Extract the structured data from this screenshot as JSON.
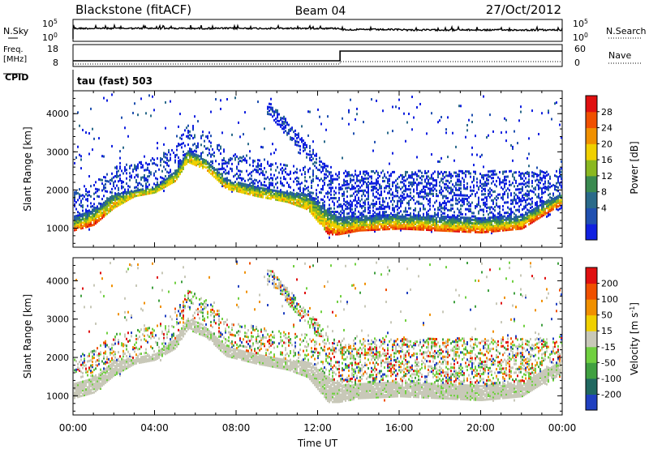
{
  "header": {
    "station": "Blackstone (fitACF)",
    "beam": "Beam 04",
    "date": "27/Oct/2012"
  },
  "sky_panel": {
    "left_label": "N.Sky",
    "right_label": "N.Search",
    "left_ticks": [
      "10^5",
      "10^0"
    ],
    "right_ticks": [
      "10^5",
      "10^0"
    ]
  },
  "freq_panel": {
    "left_label_line1": "Freq.",
    "left_label_line2": "[MHz]",
    "left_ticks": [
      "18",
      "8"
    ],
    "right_label": "Nave",
    "right_ticks": [
      "60",
      "0"
    ]
  },
  "cpid": {
    "label": "CPID",
    "value": "tau (fast) 503"
  },
  "colors": {
    "power": [
      "#1020e0",
      "#2050b0",
      "#2a6a8a",
      "#3a8a50",
      "#8ab820",
      "#f0d000",
      "#f09000",
      "#f05000",
      "#e01010"
    ],
    "velocity": [
      "#2040c0",
      "#206860",
      "#40a040",
      "#70d040",
      "#c8c8b8",
      "#f0d000",
      "#f09000",
      "#f05000",
      "#e01010"
    ]
  },
  "chart_data": [
    {
      "type": "heatmap",
      "name": "power",
      "ylabel": "Slant Range [km]",
      "yticks": [
        "1000",
        "2000",
        "3000",
        "4000"
      ],
      "ylim": [
        500,
        4600
      ],
      "xlim_hours": [
        0,
        24
      ],
      "colorbar_label": "Power [dB]",
      "colorbar_ticks": [
        "28",
        "24",
        "20",
        "16",
        "12",
        "8",
        "4"
      ],
      "colorbar_range": [
        0,
        32
      ],
      "band_lower_edge_km": [
        [
          0,
          900
        ],
        [
          1,
          1050
        ],
        [
          2,
          1500
        ],
        [
          3,
          1800
        ],
        [
          4,
          1900
        ],
        [
          5,
          2200
        ],
        [
          5.6,
          2700
        ],
        [
          6.5,
          2500
        ],
        [
          7.5,
          2000
        ],
        [
          9,
          1800
        ],
        [
          10.5,
          1650
        ],
        [
          11.5,
          1450
        ],
        [
          12.5,
          800
        ],
        [
          13,
          800
        ],
        [
          14,
          900
        ],
        [
          16,
          950
        ],
        [
          18,
          900
        ],
        [
          20,
          850
        ],
        [
          22,
          950
        ],
        [
          23.5,
          1450
        ],
        [
          24,
          1600
        ]
      ],
      "band_upper_edge_km": [
        [
          0,
          1300
        ],
        [
          1,
          1500
        ],
        [
          2,
          1900
        ],
        [
          3,
          2000
        ],
        [
          4,
          2100
        ],
        [
          5,
          2500
        ],
        [
          5.6,
          3050
        ],
        [
          6.5,
          2800
        ],
        [
          7.5,
          2300
        ],
        [
          9,
          2100
        ],
        [
          10.5,
          1950
        ],
        [
          11.5,
          1900
        ],
        [
          12.5,
          1500
        ],
        [
          13,
          1300
        ],
        [
          14,
          1300
        ],
        [
          16,
          1350
        ],
        [
          18,
          1300
        ],
        [
          20,
          1250
        ],
        [
          22,
          1350
        ],
        [
          23.5,
          1800
        ],
        [
          24,
          1900
        ]
      ]
    },
    {
      "type": "heatmap",
      "name": "velocity",
      "ylabel": "Slant Range [km]",
      "yticks": [
        "1000",
        "2000",
        "3000",
        "4000"
      ],
      "ylim": [
        500,
        4600
      ],
      "xlabel": "Time UT",
      "xticks": [
        "00:00",
        "04:00",
        "08:00",
        "12:00",
        "16:00",
        "20:00",
        "00:00"
      ],
      "xlim_hours": [
        0,
        24
      ],
      "colorbar_label": "Velocity [m s^-1]",
      "colorbar_ticks": [
        "200",
        "100",
        "50",
        "15",
        "-15",
        "-50",
        "-100",
        "-200"
      ]
    }
  ]
}
